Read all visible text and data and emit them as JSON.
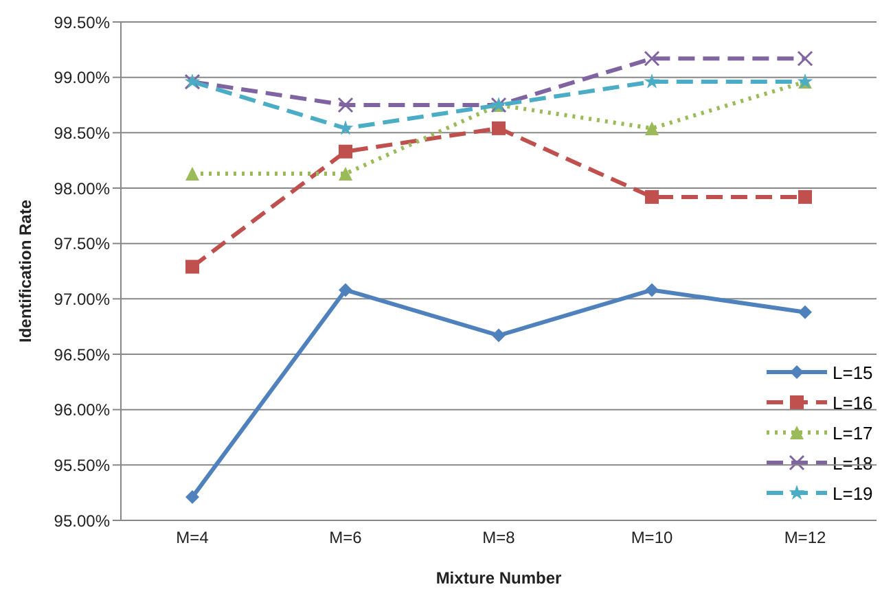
{
  "chart_data": {
    "type": "line",
    "xlabel": "Mixture Number",
    "ylabel": "Identification Rate",
    "categories": [
      "M=4",
      "M=6",
      "M=8",
      "M=10",
      "M=12"
    ],
    "series": [
      {
        "name": "L=15",
        "color": "#4f81bd",
        "marker": "diamond",
        "line_style": "solid",
        "values": [
          95.21,
          97.08,
          96.67,
          97.08,
          96.88
        ]
      },
      {
        "name": "L=16",
        "color": "#c0504d",
        "marker": "square",
        "line_style": "dashed",
        "values": [
          97.29,
          98.33,
          98.54,
          97.92,
          97.92
        ]
      },
      {
        "name": "L=17",
        "color": "#9bbb59",
        "marker": "triangle",
        "line_style": "dotted",
        "values": [
          98.13,
          98.13,
          98.75,
          98.54,
          98.96
        ]
      },
      {
        "name": "L=18",
        "color": "#8064a2",
        "marker": "cross",
        "line_style": "dashed",
        "values": [
          98.96,
          98.75,
          98.75,
          99.17,
          99.17
        ]
      },
      {
        "name": "L=19",
        "color": "#4bacc6",
        "marker": "star",
        "line_style": "dashed",
        "values": [
          98.96,
          98.54,
          98.75,
          98.96,
          98.96
        ]
      }
    ],
    "ylim": [
      95,
      99.5
    ],
    "yticks": [
      {
        "value": 95,
        "label": "95.00%"
      },
      {
        "value": 95.5,
        "label": "95.50%"
      },
      {
        "value": 96,
        "label": "96.00%"
      },
      {
        "value": 96.5,
        "label": "96.50%"
      },
      {
        "value": 97,
        "label": "97.00%"
      },
      {
        "value": 97.5,
        "label": "97.50%"
      },
      {
        "value": 98,
        "label": "98.00%"
      },
      {
        "value": 98.5,
        "label": "98.50%"
      },
      {
        "value": 99,
        "label": "99.00%"
      },
      {
        "value": 99.5,
        "label": "99.50%"
      }
    ],
    "grid": "y",
    "legend": "bottom right"
  }
}
